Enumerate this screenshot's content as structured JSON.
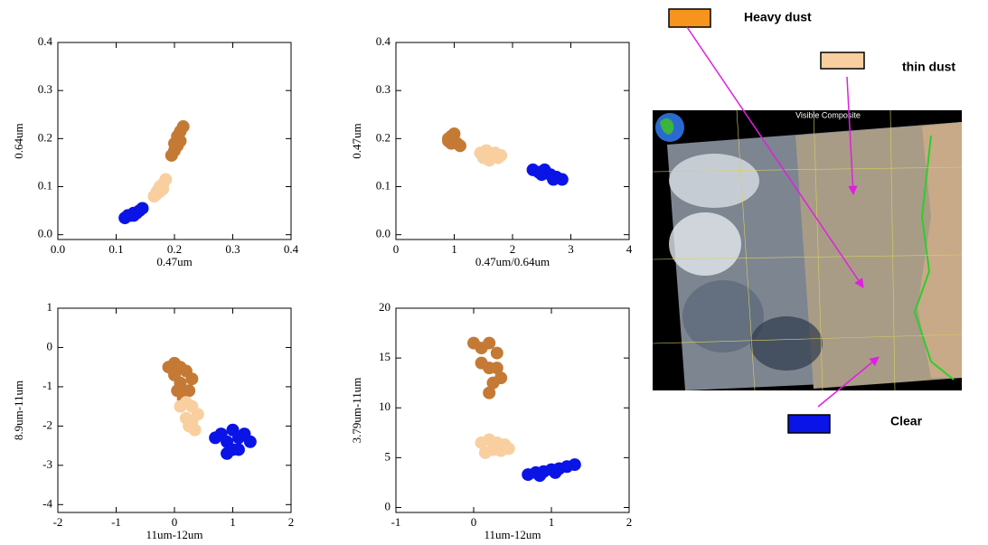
{
  "chart_data": [
    {
      "type": "scatter",
      "xlabel": "0.47um",
      "ylabel": "0.64um",
      "xlim": [
        0,
        0.4
      ],
      "xticks": [
        {
          "value": 0,
          "label": "0.0"
        },
        0.1,
        0.2,
        0.3,
        0.4
      ],
      "ylim": [
        -0.01,
        0.4
      ],
      "yticks": [
        {
          "value": 0,
          "label": "0.0"
        },
        0.1,
        0.2,
        0.3,
        0.4
      ],
      "series": [
        {
          "color": "#c47a35",
          "x": [
            0.195,
            0.2,
            0.205,
            0.21,
            0.205,
            0.2,
            0.21,
            0.215
          ],
          "values": [
            0.165,
            0.175,
            0.185,
            0.195,
            0.205,
            0.19,
            0.215,
            0.225
          ]
        },
        {
          "color": "#f9cfa0",
          "x": [
            0.165,
            0.17,
            0.175,
            0.18,
            0.175,
            0.17,
            0.18,
            0.185
          ],
          "values": [
            0.08,
            0.085,
            0.09,
            0.095,
            0.1,
            0.09,
            0.105,
            0.115
          ]
        },
        {
          "color": "#0a14e6",
          "x": [
            0.115,
            0.12,
            0.125,
            0.13,
            0.135,
            0.14,
            0.13,
            0.145
          ],
          "values": [
            0.035,
            0.04,
            0.04,
            0.045,
            0.045,
            0.05,
            0.04,
            0.055
          ]
        }
      ]
    },
    {
      "type": "scatter",
      "xlabel": "0.47um/0.64um",
      "ylabel": "0.47um",
      "xlim": [
        0,
        4
      ],
      "xticks": [
        0,
        1,
        2,
        3,
        4
      ],
      "ylim": [
        -0.01,
        0.4
      ],
      "yticks": [
        {
          "value": 0,
          "label": "0.0"
        },
        0.1,
        0.2,
        0.3,
        0.4
      ],
      "series": [
        {
          "color": "#c47a35",
          "x": [
            0.9,
            0.95,
            1.0,
            1.05,
            0.95,
            1.0,
            1.1,
            0.9
          ],
          "values": [
            0.2,
            0.205,
            0.195,
            0.19,
            0.19,
            0.21,
            0.185,
            0.195
          ]
        },
        {
          "color": "#f9cfa0",
          "x": [
            1.45,
            1.55,
            1.65,
            1.75,
            1.5,
            1.6,
            1.7,
            1.8
          ],
          "values": [
            0.17,
            0.175,
            0.165,
            0.16,
            0.16,
            0.155,
            0.17,
            0.165
          ]
        },
        {
          "color": "#0a14e6",
          "x": [
            2.35,
            2.45,
            2.55,
            2.65,
            2.75,
            2.85,
            2.5,
            2.7
          ],
          "values": [
            0.135,
            0.13,
            0.135,
            0.125,
            0.12,
            0.115,
            0.125,
            0.115
          ]
        }
      ]
    },
    {
      "type": "scatter",
      "xlabel": "11um-12um",
      "ylabel": "8.9um-11um",
      "xlim": [
        -2,
        2
      ],
      "xticks": [
        -2,
        -1,
        0,
        1,
        2
      ],
      "ylim": [
        -4.2,
        1
      ],
      "yticks": [
        -4,
        -3,
        -2,
        -1,
        0,
        1
      ],
      "series": [
        {
          "color": "#c47a35",
          "x": [
            -0.1,
            0.0,
            0.1,
            0.2,
            0.3,
            0.1,
            0.0,
            0.25,
            0.15,
            0.05
          ],
          "values": [
            -0.5,
            -0.4,
            -0.5,
            -0.6,
            -0.8,
            -0.9,
            -0.7,
            -1.1,
            -1.3,
            -1.1
          ]
        },
        {
          "color": "#f9cfa0",
          "x": [
            0.1,
            0.2,
            0.3,
            0.4,
            0.2,
            0.3,
            0.35,
            0.25
          ],
          "values": [
            -1.5,
            -1.4,
            -1.5,
            -1.7,
            -1.8,
            -1.9,
            -2.1,
            -2.0
          ]
        },
        {
          "color": "#0a14e6",
          "x": [
            0.7,
            0.8,
            0.9,
            1.0,
            1.1,
            1.2,
            1.3,
            1.0,
            0.9,
            1.1
          ],
          "values": [
            -2.3,
            -2.2,
            -2.4,
            -2.1,
            -2.3,
            -2.2,
            -2.4,
            -2.6,
            -2.7,
            -2.6
          ]
        }
      ]
    },
    {
      "type": "scatter",
      "xlabel": "11um-12um",
      "ylabel": "3.79um-11um",
      "xlim": [
        -1,
        2
      ],
      "xticks": [
        -1,
        0,
        1,
        2
      ],
      "ylim": [
        -0.5,
        20
      ],
      "yticks": [
        0,
        5,
        10,
        15,
        20
      ],
      "series": [
        {
          "color": "#c47a35",
          "x": [
            0.0,
            0.1,
            0.2,
            0.3,
            0.1,
            0.2,
            0.3,
            0.35,
            0.25,
            0.2
          ],
          "values": [
            16.5,
            16,
            16.5,
            15.5,
            14.5,
            14,
            14,
            13,
            12.5,
            11.5
          ]
        },
        {
          "color": "#f9cfa0",
          "x": [
            0.1,
            0.2,
            0.3,
            0.4,
            0.15,
            0.25,
            0.35,
            0.45
          ],
          "values": [
            6.5,
            6.8,
            6.5,
            6.3,
            5.5,
            5.8,
            5.7,
            5.9
          ]
        },
        {
          "color": "#0a14e6",
          "x": [
            0.7,
            0.8,
            0.9,
            1.0,
            1.1,
            1.2,
            1.3,
            0.85,
            1.05
          ],
          "values": [
            3.3,
            3.5,
            3.6,
            3.8,
            3.9,
            4.1,
            4.3,
            3.2,
            3.5
          ]
        }
      ]
    }
  ],
  "legend": [
    {
      "label": "Heavy dust",
      "color": "#f7941d"
    },
    {
      "label": "thin dust",
      "color": "#f9cfa0"
    },
    {
      "label": "Clear",
      "color": "#0a14e6"
    }
  ],
  "image": {
    "title": "Visible Composite"
  }
}
